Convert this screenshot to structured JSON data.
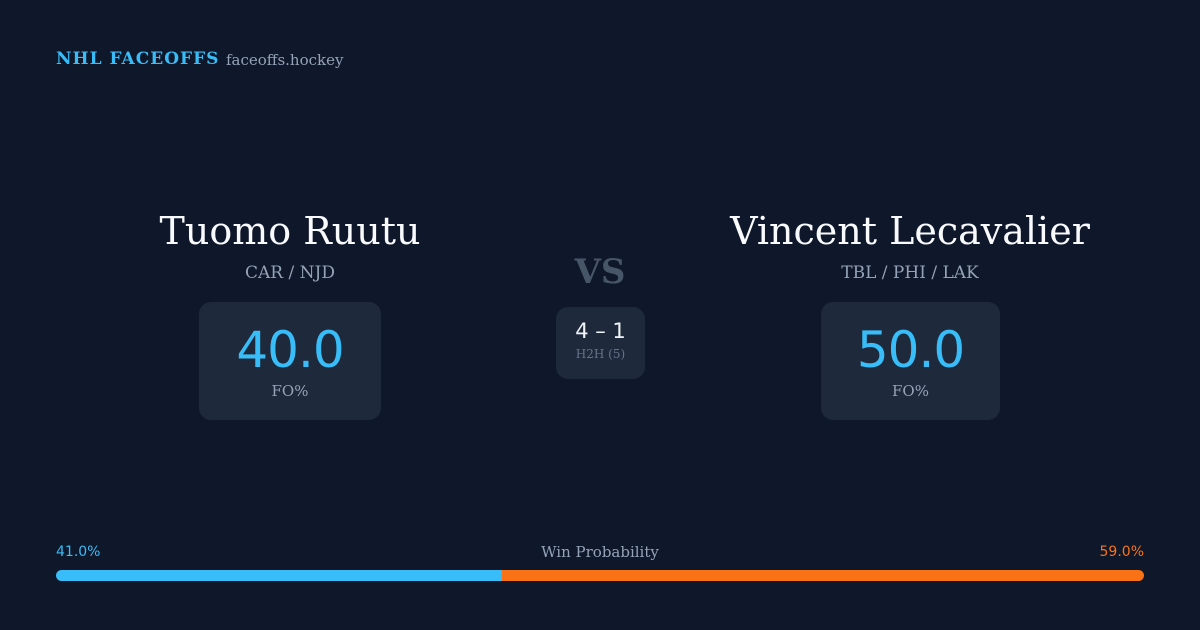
{
  "header": {
    "brand": "NHL FACEOFFS",
    "site": "faceoffs.hockey"
  },
  "players": [
    {
      "name": "Tuomo Ruutu",
      "teams": "CAR / NJD",
      "fo_pct": "40.0",
      "stat_label": "FO%"
    },
    {
      "name": "Vincent Lecavalier",
      "teams": "TBL / PHI / LAK",
      "fo_pct": "50.0",
      "stat_label": "FO%"
    }
  ],
  "vs": "VS",
  "h2h": {
    "score": "4 – 1",
    "label": "H2H (5)"
  },
  "win_probability": {
    "title": "Win Probability",
    "left": {
      "value": 41.0,
      "label": "41.0%",
      "color": "#38bdf8"
    },
    "right": {
      "value": 59.0,
      "label": "59.0%",
      "color": "#f97316"
    }
  }
}
